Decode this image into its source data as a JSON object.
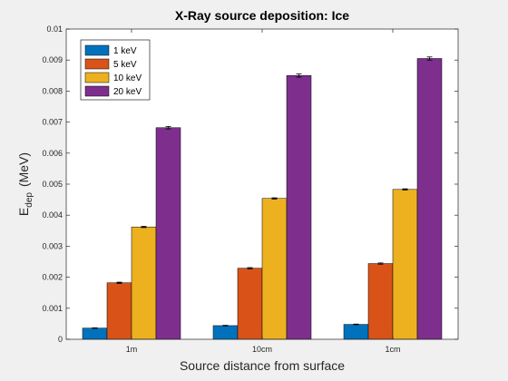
{
  "chart_data": {
    "type": "bar",
    "title": "X-Ray source deposition: Ice",
    "xlabel": "Source distance from surface",
    "ylabel_main": "E",
    "ylabel_sub": "dep",
    "ylabel_unit": "(MeV)",
    "ylim": [
      0,
      0.01
    ],
    "yticks": [
      "0",
      "0.001",
      "0.002",
      "0.003",
      "0.004",
      "0.005",
      "0.006",
      "0.007",
      "0.008",
      "0.009",
      "0.01"
    ],
    "categories": [
      "1m",
      "10cm",
      "1cm"
    ],
    "legend_position": "top-left",
    "grid": false,
    "error_bars": true,
    "series": [
      {
        "name": "1 keV",
        "color": "#0072BD",
        "values": [
          0.00036,
          0.00044,
          0.00048
        ],
        "errors": [
          1e-05,
          1e-05,
          1e-05
        ]
      },
      {
        "name": "5 keV",
        "color": "#D95319",
        "values": [
          0.00182,
          0.00229,
          0.00244
        ],
        "errors": [
          2e-05,
          2e-05,
          2e-05
        ]
      },
      {
        "name": "10 keV",
        "color": "#EDB120",
        "values": [
          0.00362,
          0.00454,
          0.00483
        ],
        "errors": [
          2e-05,
          2e-05,
          2e-05
        ]
      },
      {
        "name": "20 keV",
        "color": "#7E2F8E",
        "values": [
          0.00682,
          0.0085,
          0.00905
        ],
        "errors": [
          4e-05,
          5e-05,
          5e-05
        ]
      }
    ]
  }
}
